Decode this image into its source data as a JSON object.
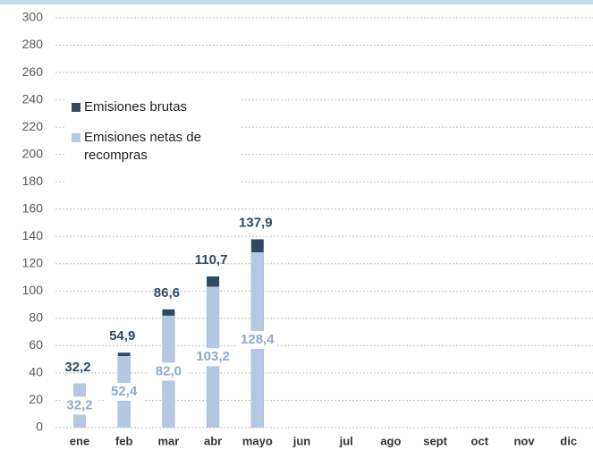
{
  "chart_data": {
    "type": "overlap_bar",
    "categories": [
      "ene",
      "feb",
      "mar",
      "abr",
      "mayo",
      "jun",
      "jul",
      "ago",
      "sept",
      "oct",
      "nov",
      "dic"
    ],
    "series": [
      {
        "name": "Emisiones brutas",
        "color": "#2e4a62",
        "values": [
          32.2,
          54.9,
          86.6,
          110.7,
          137.9,
          null,
          null,
          null,
          null,
          null,
          null,
          null
        ],
        "value_labels": [
          "32,2",
          "54,9",
          "86,6",
          "110,7",
          "137,9",
          null,
          null,
          null,
          null,
          null,
          null,
          null
        ]
      },
      {
        "name": "Emisiones netas de recompras",
        "color": "#b4c8e4",
        "values": [
          32.2,
          52.4,
          82.0,
          103.2,
          128.4,
          null,
          null,
          null,
          null,
          null,
          null,
          null
        ],
        "value_labels": [
          "32,2",
          "52,4",
          "82,0",
          "103,2",
          "128,4",
          null,
          null,
          null,
          null,
          null,
          null,
          null
        ]
      }
    ],
    "ylim": [
      0,
      300
    ],
    "yticks": [
      0,
      20,
      40,
      60,
      80,
      100,
      120,
      140,
      160,
      180,
      200,
      220,
      240,
      260,
      280,
      300
    ],
    "grid": true,
    "legend": "upper left"
  }
}
